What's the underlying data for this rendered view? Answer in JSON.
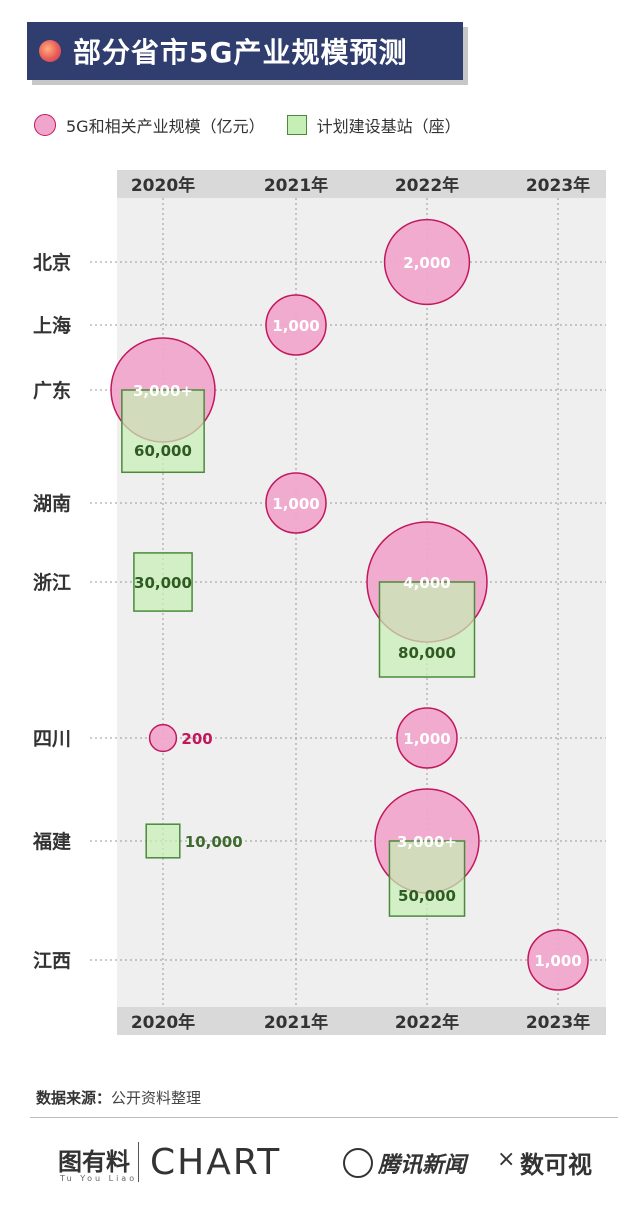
{
  "title": "部分省市5G产业规模预测",
  "legend": {
    "bubble_label": "5G和相关产业规模（亿元）",
    "square_label": "计划建设基站（座）"
  },
  "colors": {
    "title_bg": "#2f3e6e",
    "bubble_fill": "#f0a6cc",
    "bubble_stroke": "#c2185b",
    "square_fill": "#c6efb6",
    "square_stroke": "#4a8a3a",
    "panel_bg": "#efefef",
    "header_bg": "#d9d9d9"
  },
  "chart_data": {
    "type": "scatter",
    "title": "部分省市5G产业规模预测",
    "x_categories": [
      "2020年",
      "2021年",
      "2022年",
      "2023年"
    ],
    "y_categories": [
      "北京",
      "上海",
      "广东",
      "湖南",
      "浙江",
      "四川",
      "福建",
      "江西"
    ],
    "series": [
      {
        "name": "5G和相关产业规模（亿元）",
        "shape": "circle",
        "points": [
          {
            "x": "2022年",
            "y": "北京",
            "value": 2000,
            "label": "2,000"
          },
          {
            "x": "2021年",
            "y": "上海",
            "value": 1000,
            "label": "1,000"
          },
          {
            "x": "2020年",
            "y": "广东",
            "value": 3000,
            "label": "3,000+"
          },
          {
            "x": "2021年",
            "y": "湖南",
            "value": 1000,
            "label": "1,000"
          },
          {
            "x": "2022年",
            "y": "浙江",
            "value": 4000,
            "label": "4,000"
          },
          {
            "x": "2020年",
            "y": "四川",
            "value": 200,
            "label": "200"
          },
          {
            "x": "2022年",
            "y": "四川",
            "value": 1000,
            "label": "1,000"
          },
          {
            "x": "2022年",
            "y": "福建",
            "value": 3000,
            "label": "3,000+"
          },
          {
            "x": "2023年",
            "y": "江西",
            "value": 1000,
            "label": "1,000"
          }
        ]
      },
      {
        "name": "计划建设基站（座）",
        "shape": "square",
        "points": [
          {
            "x": "2020年",
            "y": "广东",
            "value": 60000,
            "label": "60,000"
          },
          {
            "x": "2020年",
            "y": "浙江",
            "value": 30000,
            "label": "30,000"
          },
          {
            "x": "2022年",
            "y": "浙江",
            "value": 80000,
            "label": "80,000"
          },
          {
            "x": "2020年",
            "y": "福建",
            "value": 10000,
            "label": "10,000"
          },
          {
            "x": "2022年",
            "y": "福建",
            "value": 50000,
            "label": "50,000"
          }
        ]
      }
    ],
    "grid": true,
    "legend_position": "top-left"
  },
  "source": {
    "label": "数据来源：",
    "text": "公开资料整理"
  },
  "footer": {
    "logo1": "图有料",
    "logo1_sub": "Tu You Liao",
    "logo2": "CHART",
    "logo3": "腾讯新闻",
    "separator": "×",
    "logo4": "数可视"
  }
}
